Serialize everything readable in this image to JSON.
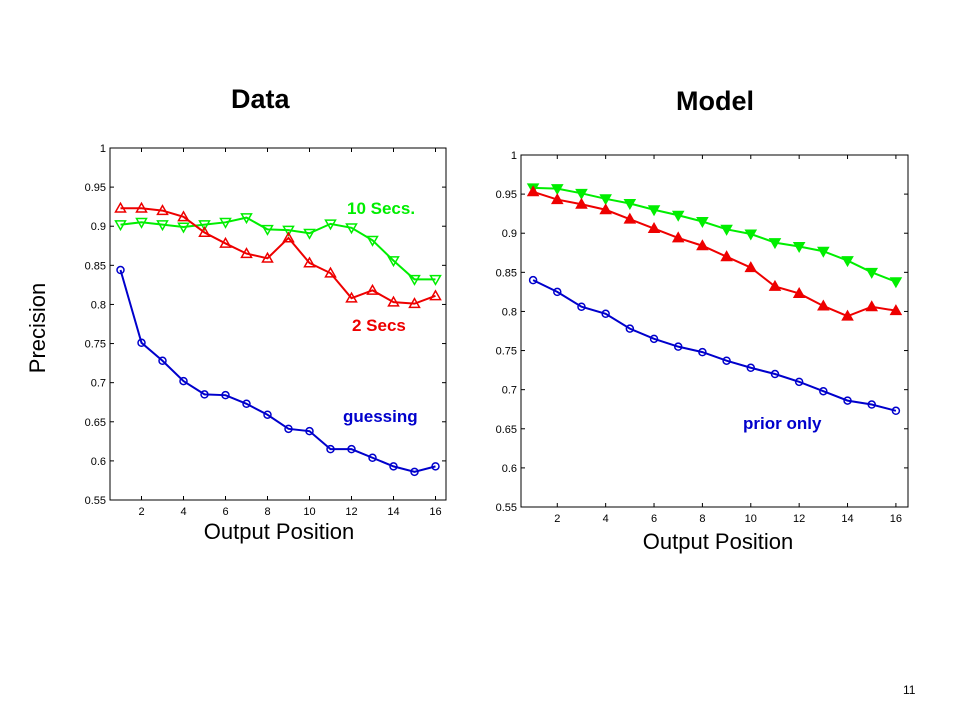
{
  "page_number": "11",
  "chart_data": [
    {
      "type": "line",
      "title": "Data",
      "xlabel": "Output Position",
      "ylabel": "Precision",
      "xlim": [
        0.5,
        16.5
      ],
      "ylim": [
        0.55,
        1.0
      ],
      "x_ticks": [
        2,
        4,
        6,
        8,
        10,
        12,
        14,
        16
      ],
      "y_ticks": [
        0.55,
        0.6,
        0.65,
        0.7,
        0.75,
        0.8,
        0.85,
        0.9,
        0.95,
        1
      ],
      "y_tick_labels": [
        "0.55",
        "0.6",
        "0.65",
        "0.7",
        "0.75",
        "0.8",
        "0.85",
        "0.9",
        "0.95",
        "1"
      ],
      "grid": false,
      "x": [
        1,
        2,
        3,
        4,
        5,
        6,
        7,
        8,
        9,
        10,
        11,
        12,
        13,
        14,
        15,
        16
      ],
      "series": [
        {
          "name": "10 Secs.",
          "color": "#00ee00",
          "marker": "triangle-down-open",
          "values": [
            0.902,
            0.905,
            0.902,
            0.899,
            0.902,
            0.905,
            0.911,
            0.896,
            0.895,
            0.891,
            0.903,
            0.898,
            0.882,
            0.856,
            0.832,
            0.832
          ]
        },
        {
          "name": "2 Secs",
          "color": "#ee0000",
          "marker": "triangle-up-open",
          "values": [
            0.923,
            0.923,
            0.92,
            0.912,
            0.892,
            0.878,
            0.865,
            0.859,
            0.885,
            0.853,
            0.84,
            0.808,
            0.818,
            0.803,
            0.801,
            0.811
          ]
        },
        {
          "name": "guessing",
          "color": "#0000cc",
          "marker": "circle-open",
          "values": [
            0.844,
            0.751,
            0.728,
            0.702,
            0.685,
            0.684,
            0.673,
            0.659,
            0.641,
            0.638,
            0.615,
            0.615,
            0.604,
            0.593,
            0.586,
            0.593
          ]
        }
      ],
      "annotations": [
        {
          "text": "10 Secs.",
          "color": "#00ee00"
        },
        {
          "text": "2 Secs",
          "color": "#ee0000"
        },
        {
          "text": "guessing",
          "color": "#0000cc"
        }
      ]
    },
    {
      "type": "line",
      "title": "Model",
      "xlabel": "Output Position",
      "ylabel": "",
      "xlim": [
        0.5,
        16.5
      ],
      "ylim": [
        0.55,
        1.0
      ],
      "x_ticks": [
        2,
        4,
        6,
        8,
        10,
        12,
        14,
        16
      ],
      "y_ticks": [
        0.55,
        0.6,
        0.65,
        0.7,
        0.75,
        0.8,
        0.85,
        0.9,
        0.95,
        1
      ],
      "y_tick_labels": [
        "0.55",
        "0.6",
        "0.65",
        "0.7",
        "0.75",
        "0.8",
        "0.85",
        "0.9",
        "0.95",
        "1"
      ],
      "grid": false,
      "x": [
        1,
        2,
        3,
        4,
        5,
        6,
        7,
        8,
        9,
        10,
        11,
        12,
        13,
        14,
        15,
        16
      ],
      "series": [
        {
          "name": "",
          "color": "#00ee00",
          "marker": "triangle-down-filled",
          "values": [
            0.958,
            0.957,
            0.951,
            0.944,
            0.938,
            0.93,
            0.923,
            0.915,
            0.905,
            0.899,
            0.888,
            0.883,
            0.877,
            0.865,
            0.85,
            0.838
          ]
        },
        {
          "name": "",
          "color": "#ee0000",
          "marker": "triangle-up-filled",
          "values": [
            0.953,
            0.943,
            0.937,
            0.93,
            0.918,
            0.906,
            0.894,
            0.884,
            0.87,
            0.856,
            0.832,
            0.823,
            0.807,
            0.794,
            0.806,
            0.801
          ]
        },
        {
          "name": "prior only",
          "color": "#0000cc",
          "marker": "circle-open",
          "values": [
            0.84,
            0.825,
            0.806,
            0.797,
            0.778,
            0.765,
            0.755,
            0.748,
            0.737,
            0.728,
            0.72,
            0.71,
            0.698,
            0.686,
            0.681,
            0.673
          ]
        }
      ],
      "annotations": [
        {
          "text": "prior only",
          "color": "#0000cc"
        }
      ]
    }
  ]
}
